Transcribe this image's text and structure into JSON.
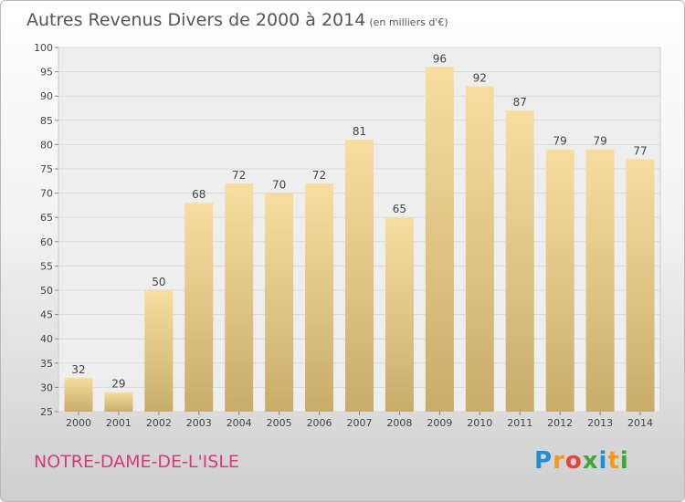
{
  "title": "Autres Revenus Divers de 2000 à 2014",
  "unit_note": "(en milliers d'€)",
  "commune": "NOTRE-DAME-DE-L'ISLE",
  "brand": {
    "text": "Proxiti",
    "letters": [
      {
        "ch": "P",
        "color": "#1e8fd8"
      },
      {
        "ch": "r",
        "color": "#f39a1e"
      },
      {
        "ch": "o",
        "color": "#e8423a"
      },
      {
        "ch": "x",
        "color": "#3aaa35"
      },
      {
        "ch": "i",
        "color": "#1e8fd8"
      },
      {
        "ch": "t",
        "color": "#f39a1e"
      },
      {
        "ch": "i",
        "color": "#3aaa35"
      }
    ]
  },
  "chart_data": {
    "type": "bar",
    "categories": [
      "2000",
      "2001",
      "2002",
      "2003",
      "2004",
      "2005",
      "2006",
      "2007",
      "2008",
      "2009",
      "2010",
      "2011",
      "2012",
      "2013",
      "2014"
    ],
    "values": [
      32,
      29,
      50,
      68,
      72,
      70,
      72,
      81,
      65,
      96,
      92,
      87,
      79,
      79,
      77
    ],
    "title": "Autres Revenus Divers de 2000 à 2014",
    "ylim": [
      25,
      100
    ],
    "yticks": [
      25,
      30,
      35,
      40,
      45,
      50,
      55,
      60,
      65,
      70,
      75,
      80,
      85,
      90,
      95,
      100
    ],
    "grid": true,
    "bar_color_light": "#f7dea0",
    "bar_color_dark": "#c9ac6a"
  }
}
